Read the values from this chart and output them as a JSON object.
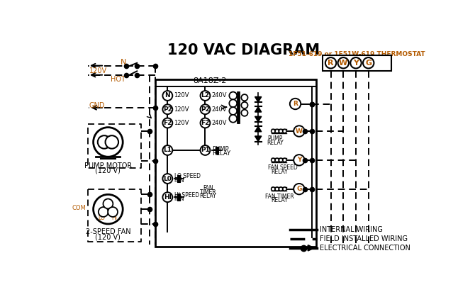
{
  "title": "120 VAC DIAGRAM",
  "bg_color": "#ffffff",
  "black": "#000000",
  "orange": "#b35a00",
  "thermostat_label": "1F51-619 or 1F51W-619 THERMOSTAT",
  "box_label": "8A18Z-2",
  "figw": 6.7,
  "figh": 4.19,
  "dpi": 100
}
